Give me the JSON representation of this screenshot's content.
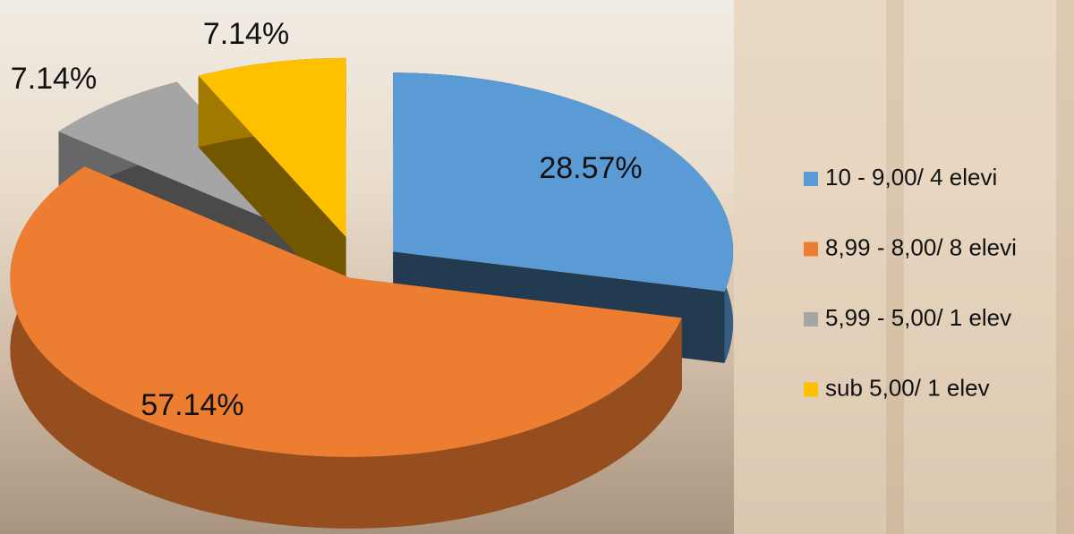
{
  "chart_data": {
    "type": "pie",
    "categories": [
      "10 - 9,00/ 4 elevi",
      "8,99 - 8,00/ 8 elevi",
      "5,99 - 5,00/ 1 elev",
      "sub 5,00/ 1 elev"
    ],
    "values": [
      28.57,
      57.14,
      7.14,
      7.14
    ],
    "value_labels": [
      "28.57%",
      "57.14%",
      "7.14%",
      "7.14%"
    ],
    "colors": [
      "#5b9bd5",
      "#ed7d31",
      "#a5a5a5",
      "#ffc000"
    ],
    "legend": "right"
  }
}
